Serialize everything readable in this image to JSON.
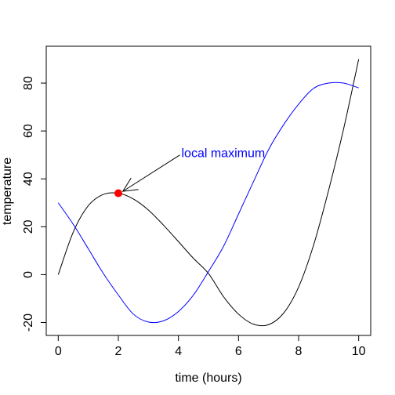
{
  "chart_data": {
    "type": "line",
    "title": "",
    "xlabel": "time (hours)",
    "ylabel": "temperature",
    "xlim": [
      -0.4,
      10.4
    ],
    "ylim": [
      -25.4,
      95.4
    ],
    "x_ticks": [
      0,
      2,
      4,
      6,
      8,
      10
    ],
    "y_ticks": [
      -20,
      0,
      20,
      40,
      60,
      80
    ],
    "grid": false,
    "legend": "none",
    "series": [
      {
        "color": "#000000",
        "x": [
          0,
          0.5,
          1,
          1.5,
          2,
          2.5,
          3,
          3.5,
          4,
          4.5,
          5,
          5.5,
          6,
          6.5,
          7,
          7.5,
          8,
          8.5,
          9,
          9.5,
          10
        ],
        "y": [
          0,
          17.8,
          28.8,
          33.5,
          34,
          31.6,
          27,
          20.7,
          13.8,
          6.8,
          0.5,
          -9.2,
          -16.5,
          -20.7,
          -20.9,
          -16.1,
          -5.2,
          12.4,
          35.3,
          61.0,
          90
        ]
      },
      {
        "color": "#0000ff",
        "x": [
          0,
          0.5,
          1,
          1.5,
          2,
          2.5,
          3,
          3.5,
          4,
          4.5,
          5,
          5.5,
          6,
          6.5,
          7,
          7.5,
          8,
          8.5,
          9,
          9.5,
          10
        ],
        "y": [
          30,
          21,
          10.8,
          0.5,
          -8.5,
          -16.5,
          -19.8,
          -19.3,
          -15.4,
          -8.5,
          1.3,
          11.8,
          25.3,
          38.9,
          52.2,
          62.6,
          71.2,
          77.8,
          80,
          80,
          78
        ]
      }
    ],
    "highlight_point": {
      "x": 2,
      "y": 34,
      "color": "#ff0000"
    },
    "annotation": {
      "text": "local maximum",
      "color": "#0000ff",
      "text_x": 4.1,
      "text_y": 49,
      "arrow_from": [
        4.05,
        50
      ],
      "arrow_to": [
        2.15,
        34.8
      ]
    }
  }
}
